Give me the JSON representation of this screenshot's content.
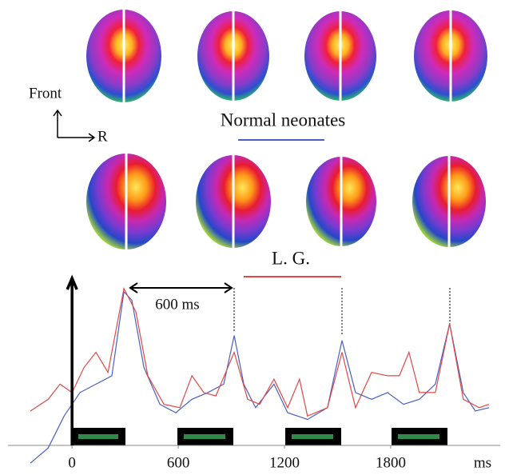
{
  "chart_data": {
    "type": "line",
    "annotations": {
      "front": "Front",
      "right": "R",
      "interval": "600 ms"
    },
    "x_label": "ms",
    "xlim": [
      -240,
      2360
    ],
    "xticks": [
      0,
      600,
      1200,
      1800
    ],
    "ylim": [
      -15,
      100
    ],
    "series": [
      {
        "name": "Normal neonates",
        "color": "#4a5fc0",
        "x": [
          -235,
          -135,
          -45,
          45,
          135,
          225,
          293,
          338,
          406,
          496,
          586,
          677,
          767,
          857,
          916,
          970,
          1037,
          1141,
          1218,
          1330,
          1443,
          1525,
          1601,
          1692,
          1782,
          1872,
          1962,
          2052,
          2133,
          2210,
          2278,
          2355
        ],
        "values": [
          -11,
          -2,
          17,
          31,
          36,
          41,
          91,
          86,
          46,
          24,
          19,
          27,
          31,
          36,
          65,
          36,
          22,
          36,
          19,
          15,
          22,
          62,
          31,
          27,
          31,
          24,
          27,
          36,
          72,
          31,
          20,
          22
        ]
      },
      {
        "name": "L. G.",
        "color": "#e04848",
        "x": [
          -235,
          -135,
          -68,
          0,
          68,
          135,
          203,
          293,
          361,
          428,
          519,
          609,
          677,
          744,
          812,
          916,
          992,
          1060,
          1141,
          1218,
          1285,
          1330,
          1443,
          1525,
          1601,
          1692,
          1782,
          1849,
          1903,
          1962,
          2052,
          2133,
          2210,
          2300,
          2355
        ],
        "values": [
          20,
          27,
          36,
          31,
          46,
          55,
          43,
          93,
          79,
          41,
          24,
          22,
          41,
          31,
          29,
          55,
          27,
          24,
          39,
          22,
          39,
          17,
          22,
          55,
          22,
          43,
          41,
          41,
          55,
          31,
          31,
          72,
          27,
          22,
          24
        ]
      }
    ]
  }
}
